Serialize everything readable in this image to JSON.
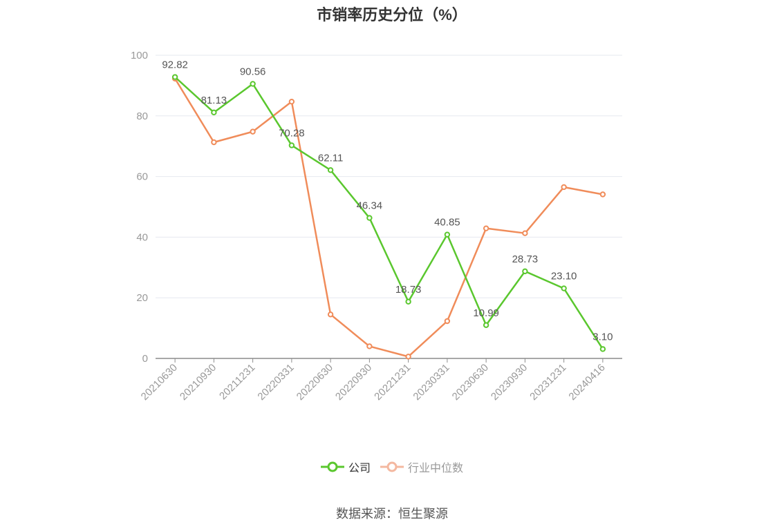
{
  "chart_data": {
    "type": "line",
    "title": "市销率历史分位（%）",
    "categories": [
      "20210630",
      "20210930",
      "20211231",
      "20220331",
      "20220630",
      "20220930",
      "20221231",
      "20230331",
      "20230630",
      "20230930",
      "20231231",
      "20240416"
    ],
    "ylim": [
      0,
      100
    ],
    "yticks": [
      0,
      20,
      40,
      60,
      80,
      100
    ],
    "grid": true,
    "legend_position": "bottom",
    "series": [
      {
        "name": "公司",
        "color": "#5ac72e",
        "show_labels": true,
        "values": [
          92.82,
          81.13,
          90.56,
          70.28,
          62.11,
          46.34,
          18.73,
          40.85,
          10.99,
          28.73,
          23.1,
          3.1
        ],
        "labels": [
          "92.82",
          "81.13",
          "90.56",
          "70.28",
          "62.11",
          "46.34",
          "18.73",
          "40.85",
          "10.99",
          "28.73",
          "23.10",
          "3.10"
        ]
      },
      {
        "name": "行业中位数",
        "color": "#f08c5a",
        "show_labels": false,
        "values": [
          92.3,
          71.3,
          74.8,
          84.7,
          14.5,
          4.0,
          0.6,
          12.3,
          42.9,
          41.3,
          56.5,
          54.1
        ]
      }
    ]
  },
  "legend": {
    "items": [
      {
        "label": "公司",
        "color": "#5ac72e",
        "text_color": "#333333"
      },
      {
        "label": "行业中位数",
        "color": "#f4b8a0",
        "text_color": "#999999"
      }
    ]
  },
  "source": "数据来源：恒生聚源"
}
